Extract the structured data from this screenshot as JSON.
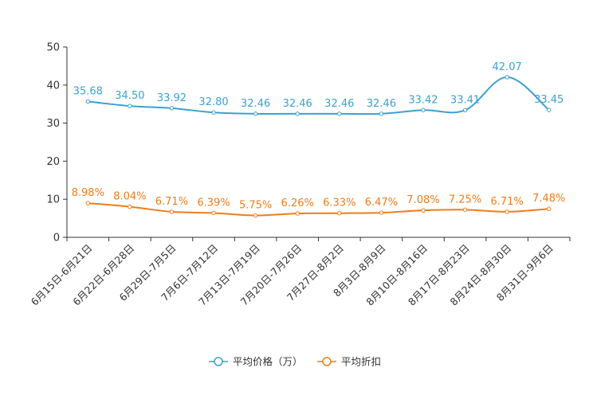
{
  "chart_data": {
    "type": "line",
    "title": "",
    "xlabel": "",
    "ylabel": "",
    "ylim": [
      0,
      50
    ],
    "yticks": [
      0,
      10,
      20,
      30,
      40,
      50
    ],
    "categories": [
      "6月15日-6月21日",
      "6月22日-6月28日",
      "6月29日-7月5日",
      "7月6日-7月12日",
      "7月13日-7月19日",
      "7月20日-7月26日",
      "7月27日-8月2日",
      "8月3日-8月9日",
      "8月10日-8月16日",
      "8月17日-8月23日",
      "8月24日-8月30日",
      "8月31日-9月6日"
    ],
    "series": [
      {
        "name": "平均价格（万）",
        "color": "#3ba1d0",
        "values": [
          35.68,
          34.5,
          33.92,
          32.8,
          32.46,
          32.46,
          32.46,
          32.46,
          33.42,
          33.41,
          42.07,
          33.45
        ],
        "labels": [
          "35.68",
          "34.50",
          "33.92",
          "32.80",
          "32.46",
          "32.46",
          "32.46",
          "32.46",
          "33.42",
          "33.41",
          "42.07",
          "33.45"
        ]
      },
      {
        "name": "平均折扣",
        "color": "#ee7d1b",
        "values": [
          8.98,
          8.04,
          6.71,
          6.39,
          5.75,
          6.26,
          6.33,
          6.47,
          7.08,
          7.25,
          6.71,
          7.48
        ],
        "labels": [
          "8.98%",
          "8.04%",
          "6.71%",
          "6.39%",
          "5.75%",
          "6.26%",
          "6.33%",
          "6.47%",
          "7.08%",
          "7.25%",
          "6.71%",
          "7.48%"
        ]
      }
    ],
    "legend": "bottom-center"
  }
}
